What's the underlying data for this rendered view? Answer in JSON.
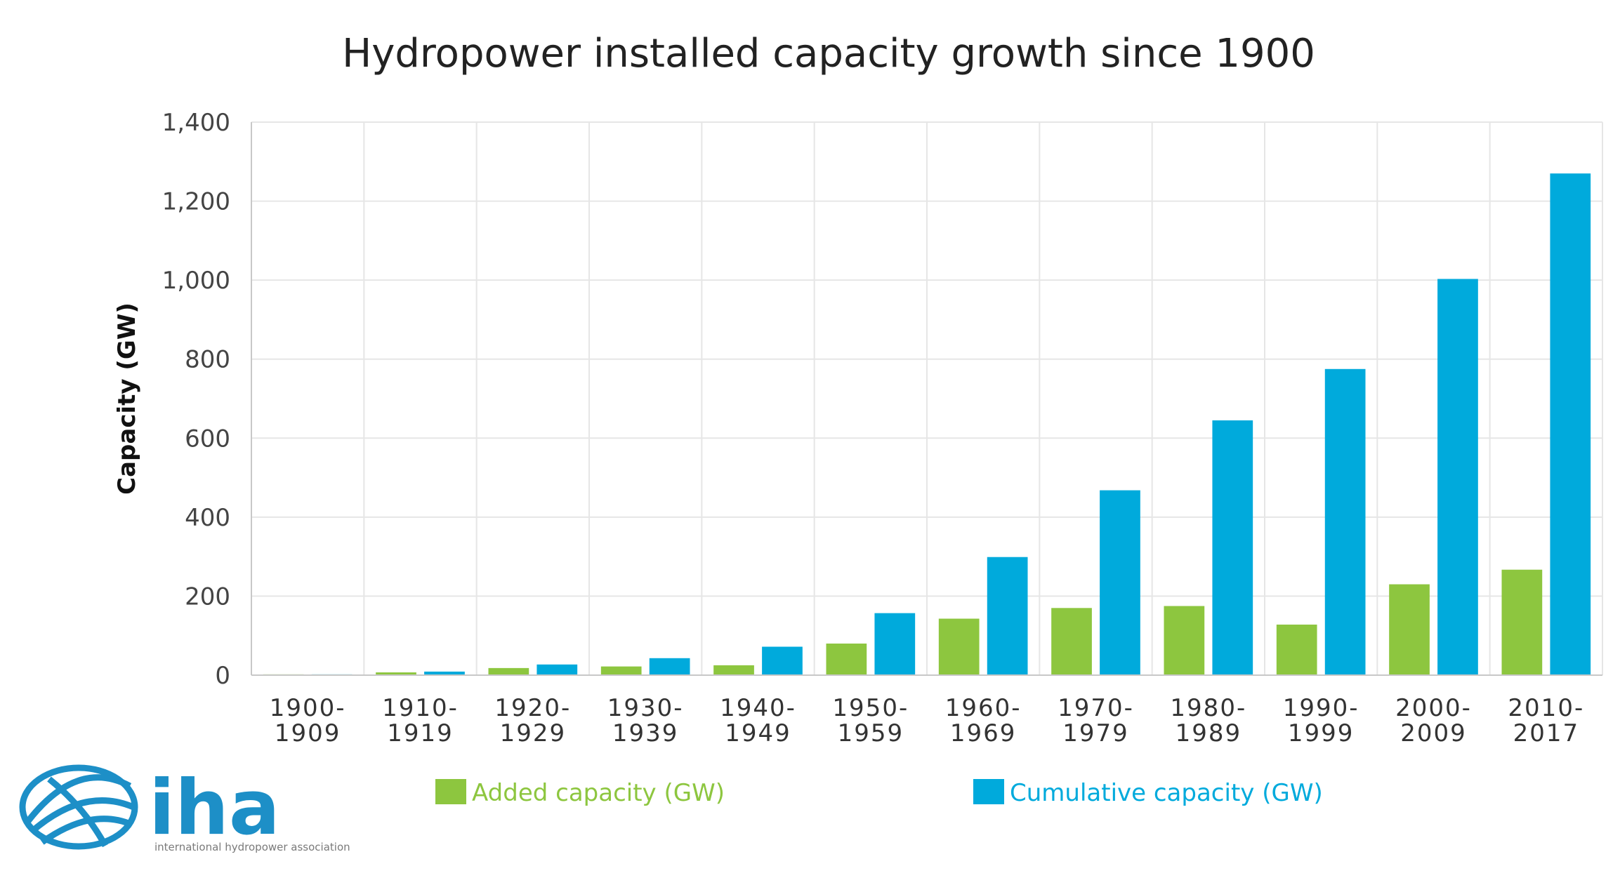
{
  "chart_data": {
    "type": "bar",
    "title": "Hydropower installed capacity growth since 1900",
    "xlabel": "",
    "ylabel": "Capacity (GW)",
    "ylim": [
      0,
      1400
    ],
    "yticks": [
      0,
      200,
      400,
      600,
      800,
      1000,
      1200,
      1400
    ],
    "ytick_labels": [
      "0",
      "200",
      "400",
      "600",
      "800",
      "1,000",
      "1,200",
      "1,400"
    ],
    "categories": [
      [
        "1900-",
        "1909"
      ],
      [
        "1910-",
        "1919"
      ],
      [
        "1920-",
        "1929"
      ],
      [
        "1930-",
        "1939"
      ],
      [
        "1940-",
        "1949"
      ],
      [
        "1950-",
        "1959"
      ],
      [
        "1960-",
        "1969"
      ],
      [
        "1970-",
        "1979"
      ],
      [
        "1980-",
        "1989"
      ],
      [
        "1990-",
        "1999"
      ],
      [
        "2000-",
        "2009"
      ],
      [
        "2010-",
        "2017"
      ]
    ],
    "series": [
      {
        "name": "Added capacity (GW)",
        "color": "#8dc63f",
        "values": [
          2,
          7,
          18,
          22,
          25,
          80,
          143,
          170,
          175,
          128,
          230,
          267
        ]
      },
      {
        "name": "Cumulative capacity (GW)",
        "color": "#00aadc",
        "values": [
          2,
          9,
          27,
          43,
          72,
          157,
          299,
          468,
          645,
          775,
          1003,
          1270
        ]
      }
    ],
    "grid": true,
    "legend_position": "bottom"
  },
  "logo": {
    "text": "iha",
    "subtitle": "international hydropower association",
    "color": "#1d8fc7"
  }
}
